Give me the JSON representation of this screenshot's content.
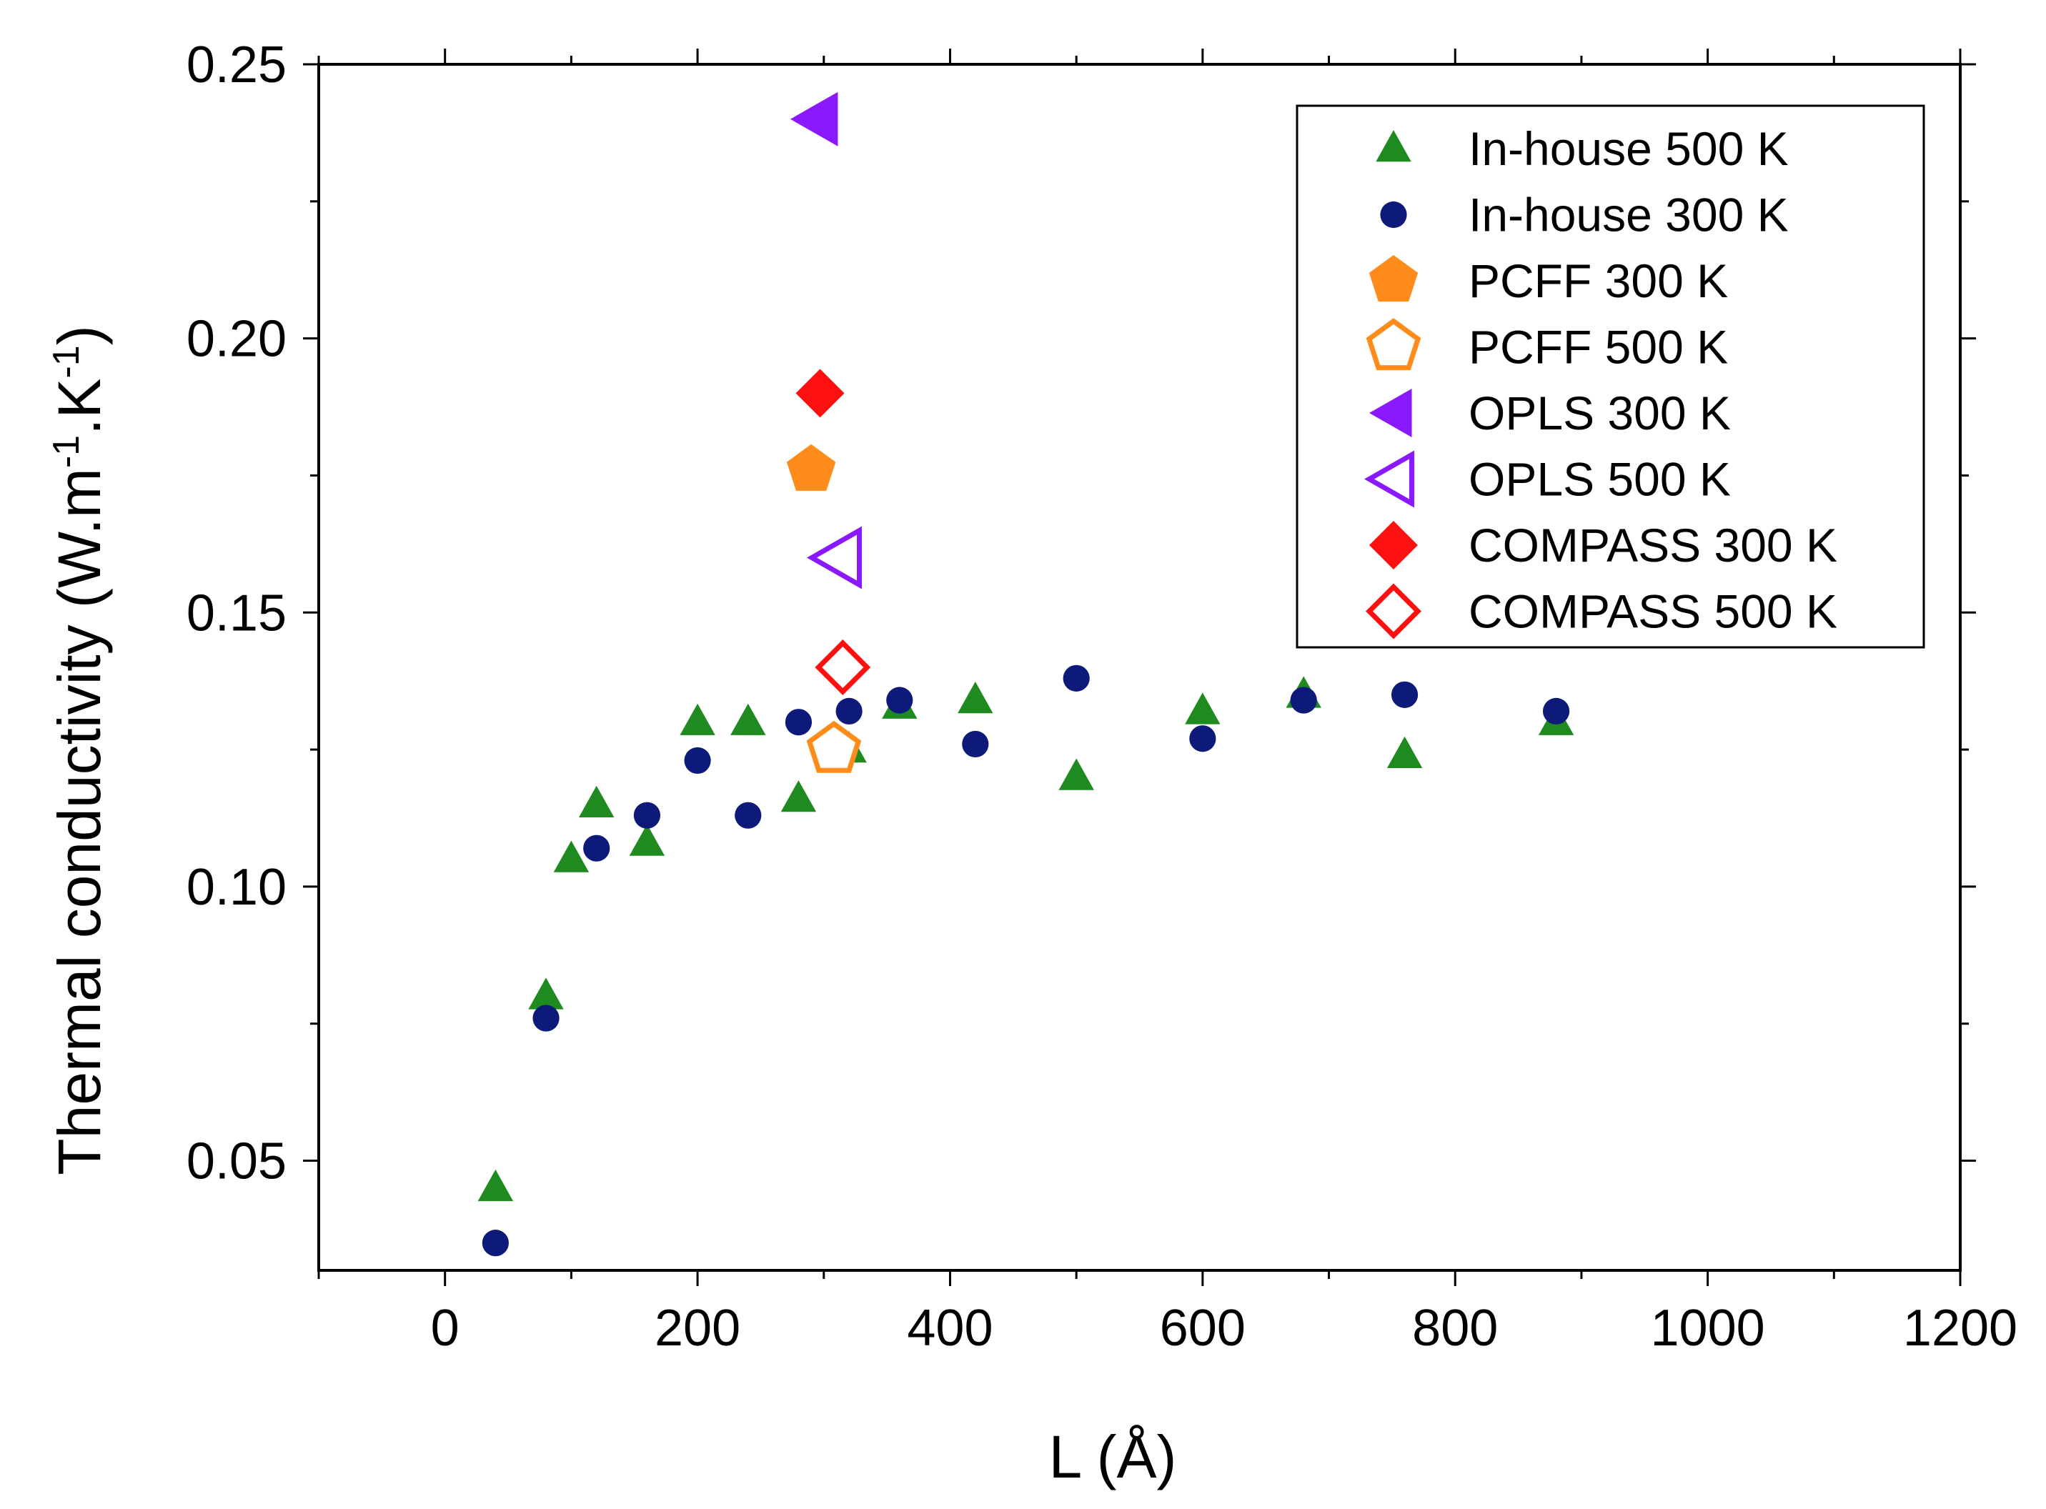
{
  "chart_data": {
    "type": "scatter",
    "title": "",
    "xlabel": "L (Å)",
    "ylabel": {
      "main": "Thermal conductivity (W.m",
      "sup1": "-1",
      "mid": ".K",
      "sup2": "-1",
      "end": ")"
    },
    "xlim": [
      -100,
      1200
    ],
    "ylim": [
      0.03,
      0.25
    ],
    "xticks": [
      0,
      200,
      400,
      600,
      800,
      1000,
      1200
    ],
    "yticks": [
      0.05,
      0.1,
      0.15,
      0.2,
      0.25
    ],
    "xtick_labels": [
      "0",
      "200",
      "400",
      "600",
      "800",
      "1000",
      "1200"
    ],
    "ytick_labels": [
      "0.05",
      "0.10",
      "0.15",
      "0.20",
      "0.25"
    ],
    "grid": false,
    "legend_position": "top-right",
    "series": [
      {
        "name": "In-house 500 K",
        "marker": "triangle-up",
        "filled": true,
        "color": "#1f8a1f",
        "points": [
          [
            40,
            0.045
          ],
          [
            80,
            0.08
          ],
          [
            100,
            0.105
          ],
          [
            120,
            0.115
          ],
          [
            160,
            0.108
          ],
          [
            200,
            0.13
          ],
          [
            240,
            0.13
          ],
          [
            280,
            0.116
          ],
          [
            320,
            0.125
          ],
          [
            360,
            0.133
          ],
          [
            420,
            0.134
          ],
          [
            500,
            0.12
          ],
          [
            600,
            0.132
          ],
          [
            680,
            0.135
          ],
          [
            760,
            0.124
          ],
          [
            880,
            0.13
          ]
        ]
      },
      {
        "name": "In-house 300 K",
        "marker": "circle",
        "filled": true,
        "color": "#0d1a7a",
        "points": [
          [
            40,
            0.035
          ],
          [
            80,
            0.076
          ],
          [
            120,
            0.107
          ],
          [
            160,
            0.113
          ],
          [
            200,
            0.123
          ],
          [
            240,
            0.113
          ],
          [
            280,
            0.13
          ],
          [
            320,
            0.132
          ],
          [
            360,
            0.134
          ],
          [
            420,
            0.126
          ],
          [
            500,
            0.138
          ],
          [
            600,
            0.127
          ],
          [
            680,
            0.134
          ],
          [
            760,
            0.135
          ],
          [
            880,
            0.132
          ]
        ]
      },
      {
        "name": "PCFF 300 K",
        "marker": "pentagon",
        "filled": true,
        "color": "#ff8c1a",
        "points": [
          [
            290,
            0.176
          ]
        ]
      },
      {
        "name": "PCFF 500 K",
        "marker": "pentagon",
        "filled": false,
        "color": "#ff8c1a",
        "points": [
          [
            308,
            0.125
          ]
        ]
      },
      {
        "name": "OPLS 300 K",
        "marker": "triangle-left",
        "filled": true,
        "color": "#8a19ff",
        "points": [
          [
            295,
            0.24
          ]
        ]
      },
      {
        "name": "OPLS 500 K",
        "marker": "triangle-left",
        "filled": false,
        "color": "#8a19ff",
        "points": [
          [
            312,
            0.16
          ]
        ]
      },
      {
        "name": "COMPASS 300 K",
        "marker": "diamond",
        "filled": true,
        "color": "#ff1010",
        "points": [
          [
            297,
            0.19
          ]
        ]
      },
      {
        "name": "COMPASS 500 K",
        "marker": "diamond",
        "filled": false,
        "color": "#ff1010",
        "points": [
          [
            315,
            0.14
          ]
        ]
      }
    ]
  }
}
